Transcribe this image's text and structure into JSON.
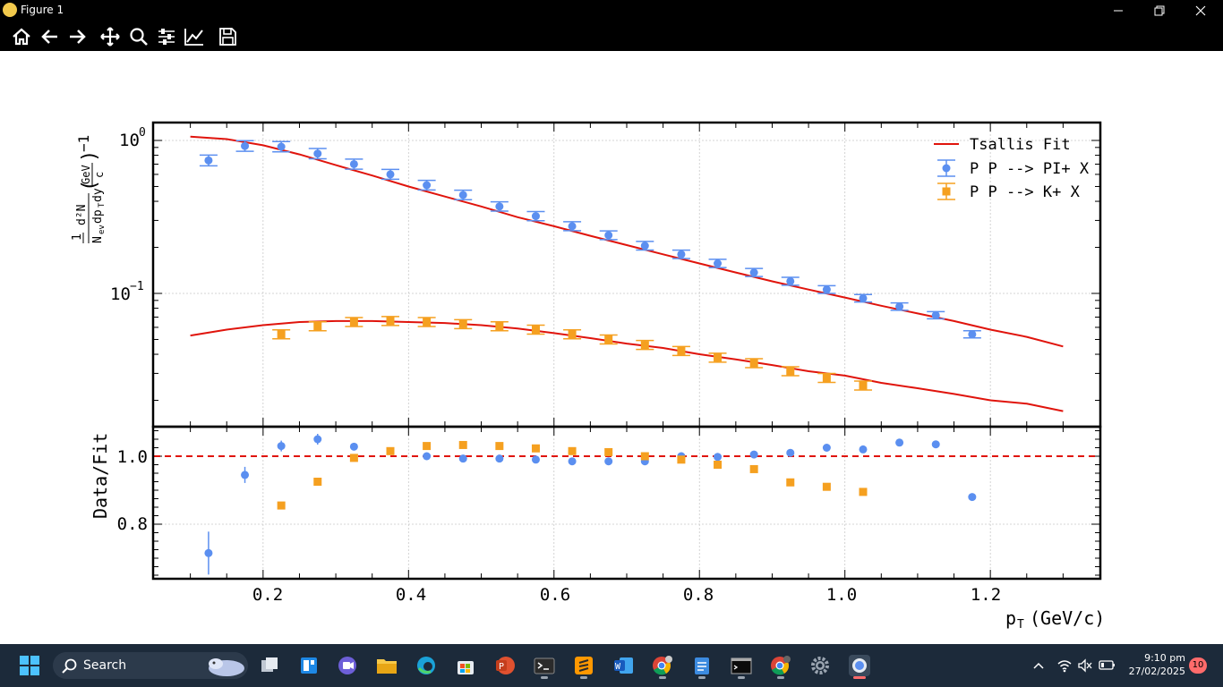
{
  "window": {
    "title": "Figure 1"
  },
  "toolbar": {
    "buttons": [
      "home-icon",
      "back-icon",
      "forward-icon",
      "pan-icon",
      "zoom-icon",
      "configure-subplots-icon",
      "edit-axis-icon",
      "save-icon"
    ]
  },
  "chart_data": [
    {
      "type": "scatter",
      "yscale": "log",
      "xlim": [
        0.05,
        1.35
      ],
      "ylabel": "1 d²N / N_ev dp_T dy (GeV/c)^-1",
      "ytick_labels": [
        "10^0",
        "10^-1"
      ],
      "legend_placement": "top-right",
      "legend": [
        "Tsallis Fit",
        "P P --> PI+ X",
        "P P --> K+ X"
      ],
      "grid": true,
      "series": [
        {
          "name": "P P --> PI+ X",
          "color": "#5b8ff0",
          "x": [
            0.125,
            0.175,
            0.225,
            0.275,
            0.325,
            0.375,
            0.425,
            0.475,
            0.525,
            0.575,
            0.625,
            0.675,
            0.725,
            0.775,
            0.825,
            0.875,
            0.925,
            0.975,
            1.025,
            1.075,
            1.125,
            1.175
          ],
          "y": [
            0.74,
            0.92,
            0.91,
            0.82,
            0.7,
            0.6,
            0.51,
            0.44,
            0.37,
            0.32,
            0.275,
            0.24,
            0.205,
            0.18,
            0.157,
            0.137,
            0.12,
            0.106,
            0.093,
            0.082,
            0.072,
            0.054
          ]
        },
        {
          "name": "P P --> K+ X",
          "color": "#f5a020",
          "x": [
            0.225,
            0.275,
            0.325,
            0.375,
            0.425,
            0.475,
            0.525,
            0.575,
            0.625,
            0.675,
            0.725,
            0.775,
            0.825,
            0.875,
            0.925,
            0.975,
            1.025
          ],
          "y": [
            0.054,
            0.061,
            0.065,
            0.066,
            0.065,
            0.063,
            0.061,
            0.058,
            0.054,
            0.05,
            0.046,
            0.042,
            0.038,
            0.035,
            0.031,
            0.028,
            0.025
          ]
        }
      ],
      "fits": [
        {
          "name": "Tsallis Fit",
          "color": "#e0140c",
          "x": [
            0.1,
            0.15,
            0.2,
            0.25,
            0.3,
            0.35,
            0.4,
            0.45,
            0.5,
            0.55,
            0.6,
            0.65,
            0.7,
            0.75,
            0.8,
            0.85,
            0.9,
            0.95,
            1.0,
            1.05,
            1.1,
            1.15,
            1.2,
            1.25,
            1.3
          ],
          "y": [
            1.06,
            1.02,
            0.93,
            0.81,
            0.69,
            0.59,
            0.5,
            0.43,
            0.37,
            0.315,
            0.275,
            0.238,
            0.207,
            0.18,
            0.157,
            0.137,
            0.12,
            0.106,
            0.094,
            0.083,
            0.074,
            0.066,
            0.058,
            0.052,
            0.045
          ]
        },
        {
          "name": "Tsallis Fit K",
          "color": "#e0140c",
          "x": [
            0.1,
            0.15,
            0.2,
            0.25,
            0.3,
            0.35,
            0.4,
            0.45,
            0.5,
            0.55,
            0.6,
            0.65,
            0.7,
            0.75,
            0.8,
            0.85,
            0.9,
            0.95,
            1.0,
            1.05,
            1.1,
            1.15,
            1.2,
            1.25,
            1.3
          ],
          "y": [
            0.053,
            0.058,
            0.062,
            0.065,
            0.066,
            0.066,
            0.065,
            0.064,
            0.062,
            0.059,
            0.055,
            0.051,
            0.047,
            0.044,
            0.04,
            0.037,
            0.034,
            0.031,
            0.029,
            0.026,
            0.024,
            0.022,
            0.02,
            0.019,
            0.017
          ]
        }
      ]
    },
    {
      "type": "scatter",
      "xlim": [
        0.05,
        1.35
      ],
      "ylim": [
        0.65,
        1.09
      ],
      "xlabel": "p_T (GeV/c)",
      "ylabel": "Data/Fit",
      "xtick_labels": [
        "0.2",
        "0.4",
        "0.6",
        "0.8",
        "1.0",
        "1.2"
      ],
      "ytick_labels": [
        "0.8",
        "1.0"
      ],
      "reference_line": 1.0,
      "series": [
        {
          "name": "P P --> PI+ X",
          "color": "#5b8ff0",
          "x": [
            0.125,
            0.175,
            0.225,
            0.275,
            0.325,
            0.425,
            0.475,
            0.525,
            0.575,
            0.625,
            0.675,
            0.725,
            0.775,
            0.825,
            0.875,
            0.925,
            0.975,
            1.025,
            1.075,
            1.125,
            1.175
          ],
          "y": [
            0.715,
            0.945,
            1.03,
            1.05,
            1.028,
            1.0,
            0.993,
            0.993,
            0.99,
            0.985,
            0.985,
            0.985,
            1.0,
            0.998,
            1.005,
            1.01,
            1.025,
            1.02,
            1.04,
            1.035,
            0.88
          ]
        },
        {
          "name": "P P --> K+ X",
          "color": "#f5a020",
          "x": [
            0.225,
            0.275,
            0.325,
            0.375,
            0.425,
            0.475,
            0.525,
            0.575,
            0.625,
            0.675,
            0.725,
            0.775,
            0.825,
            0.875,
            0.925,
            0.975,
            1.025
          ],
          "y": [
            0.855,
            0.925,
            0.995,
            1.015,
            1.03,
            1.033,
            1.03,
            1.023,
            1.015,
            1.012,
            1.0,
            0.99,
            0.975,
            0.962,
            0.923,
            0.91,
            0.895
          ]
        }
      ]
    }
  ],
  "tick_labels": {
    "x": [
      "0.2",
      "0.4",
      "0.6",
      "0.8",
      "1.0",
      "1.2"
    ],
    "y_top_base": "10",
    "y_top_exp": [
      "0",
      "−1"
    ],
    "y_bottom": [
      "0.8",
      "1.0"
    ]
  },
  "axis_labels": {
    "x_main": "p",
    "x_sub": "T",
    "x_rest": "(GeV/c)",
    "y_bottom": "Data/Fit"
  },
  "ylabel_parts": {
    "one": "1",
    "num": "d²N",
    "den_a": "N",
    "den_b": "ev",
    "den_c": "dp",
    "den_d": "T",
    "den_e": "dy",
    "unit_num": "GeV",
    "unit_den": "c",
    "exp": "−1"
  },
  "legend": {
    "fit": "Tsallis Fit",
    "pion": "P P --> PI+ X",
    "kaon": "P P --> K+ X"
  },
  "taskbar": {
    "search_label": "Search",
    "time": "9:10 pm",
    "date": "27/02/2025",
    "notifications": "10",
    "apps": [
      "start-icon",
      "widgets-icon",
      "task-view-icon",
      "teams-icon",
      "file-explorer-icon",
      "edge-icon",
      "store-icon",
      "powerpoint-icon",
      "terminal-icon",
      "sublime-icon",
      "word-icon",
      "chrome-icon",
      "notepad-icon",
      "cmd-icon",
      "chrome-alt-icon",
      "settings-icon",
      "python-icon"
    ]
  }
}
